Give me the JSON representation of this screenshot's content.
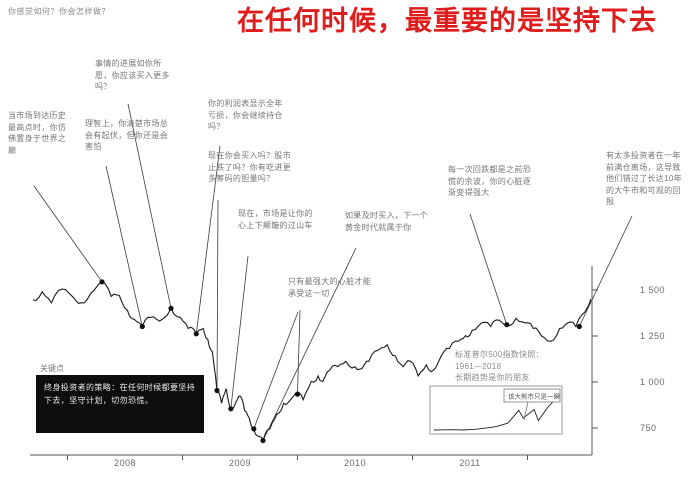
{
  "header": {
    "question": "你感觉如何？你会怎样做？",
    "title": "在任何时候，最重要的是坚持下去",
    "title_color": "#df1d1d"
  },
  "annotations": [
    "当市场到达历史最高点时，你仿佛置身于世界之巅",
    "事情的进展如你所愿，你应该买入更多吗？",
    "理智上，你清楚市场总会有起伏，但你还是会害怕",
    "你的利润表显示全年亏损，你会继续持仓吗？",
    "现在你会买入吗？股市止跌了吗？你有吃进更多筹码的胆量吗？",
    "现在，市场是让你的心上下颠簸的过山车",
    "只有最强大的心脏才能承受这一切",
    "如果及时买入，下一个黄金时代就属于你",
    "每一次回跌都是之前恐慌的余波，你的心脏逐渐变得强大",
    "有太多投资者在一年前满仓离场，这导致他们错过了长达10年的大牛市和可观的回报"
  ],
  "key_point": {
    "label": "关键点",
    "body": "终身投资者的策略：在任何时候都要坚持下去，坚守计划，切勿恐慌。"
  },
  "inset": {
    "caption": "标准普尔500指数快照：\n1961—2018\n长期趋势是你的朋友",
    "note": "该大熊市只是一瞬"
  },
  "chart_data": {
    "type": "line",
    "title": "在任何时候，最重要的是坚持下去",
    "xlabel": "",
    "ylabel": "",
    "grid": false,
    "x_ticks": [
      "2008",
      "2009",
      "2010",
      "2011"
    ],
    "y_ticks": [
      "1 500",
      "1 250",
      "1 000",
      "750"
    ],
    "y_tick_values": [
      1500,
      1250,
      1000,
      750
    ],
    "x_range": [
      2007.2,
      2012.05
    ],
    "ylim": [
      620,
      1650
    ],
    "series": [
      {
        "name": "标准普尔500指数",
        "points": [
          [
            2007.2,
            1445
          ],
          [
            2007.28,
            1490
          ],
          [
            2007.36,
            1430
          ],
          [
            2007.45,
            1505
          ],
          [
            2007.55,
            1460
          ],
          [
            2007.62,
            1430
          ],
          [
            2007.7,
            1480
          ],
          [
            2007.8,
            1545
          ],
          [
            2007.88,
            1465
          ],
          [
            2007.95,
            1470
          ],
          [
            2008.02,
            1390
          ],
          [
            2008.08,
            1340
          ],
          [
            2008.15,
            1300
          ],
          [
            2008.22,
            1350
          ],
          [
            2008.3,
            1330
          ],
          [
            2008.4,
            1400
          ],
          [
            2008.48,
            1350
          ],
          [
            2008.55,
            1290
          ],
          [
            2008.62,
            1260
          ],
          [
            2008.68,
            1290
          ],
          [
            2008.72,
            1230
          ],
          [
            2008.76,
            1160
          ],
          [
            2008.8,
            950
          ],
          [
            2008.84,
            880
          ],
          [
            2008.88,
            960
          ],
          [
            2008.92,
            850
          ],
          [
            2008.96,
            880
          ],
          [
            2009.0,
            920
          ],
          [
            2009.04,
            840
          ],
          [
            2009.08,
            800
          ],
          [
            2009.12,
            740
          ],
          [
            2009.16,
            700
          ],
          [
            2009.2,
            676
          ],
          [
            2009.26,
            740
          ],
          [
            2009.32,
            820
          ],
          [
            2009.38,
            880
          ],
          [
            2009.44,
            900
          ],
          [
            2009.5,
            930
          ],
          [
            2009.55,
            900
          ],
          [
            2009.62,
            1000
          ],
          [
            2009.68,
            1030
          ],
          [
            2009.72,
            1000
          ],
          [
            2009.78,
            1060
          ],
          [
            2009.85,
            1080
          ],
          [
            2009.92,
            1110
          ],
          [
            2010.0,
            1080
          ],
          [
            2010.06,
            1070
          ],
          [
            2010.12,
            1110
          ],
          [
            2010.2,
            1170
          ],
          [
            2010.28,
            1200
          ],
          [
            2010.35,
            1140
          ],
          [
            2010.42,
            1080
          ],
          [
            2010.48,
            1110
          ],
          [
            2010.55,
            1030
          ],
          [
            2010.62,
            1090
          ],
          [
            2010.68,
            1060
          ],
          [
            2010.75,
            1140
          ],
          [
            2010.82,
            1180
          ],
          [
            2010.9,
            1220
          ],
          [
            2010.96,
            1250
          ],
          [
            2011.02,
            1280
          ],
          [
            2011.1,
            1320
          ],
          [
            2011.18,
            1300
          ],
          [
            2011.25,
            1335
          ],
          [
            2011.32,
            1310
          ],
          [
            2011.4,
            1345
          ],
          [
            2011.48,
            1320
          ],
          [
            2011.55,
            1290
          ],
          [
            2011.62,
            1250
          ],
          [
            2011.7,
            1220
          ],
          [
            2011.78,
            1290
          ],
          [
            2011.85,
            1320
          ],
          [
            2011.92,
            1300
          ],
          [
            2012.0,
            1380
          ],
          [
            2012.05,
            1450
          ]
        ]
      }
    ],
    "annotation_points": [
      [
        2007.8,
        1545
      ],
      [
        2008.15,
        1300
      ],
      [
        2008.4,
        1400
      ],
      [
        2008.62,
        1260
      ],
      [
        2008.8,
        950
      ],
      [
        2008.92,
        850
      ],
      [
        2009.12,
        740
      ],
      [
        2009.2,
        676
      ],
      [
        2009.5,
        930
      ],
      [
        2011.32,
        1310
      ],
      [
        2011.95,
        1300
      ]
    ],
    "inset_chart": {
      "type": "line",
      "title": "标准普尔500指数快照：1961—2018",
      "x": [
        1961,
        1966,
        1970,
        1974,
        1980,
        1987,
        1990,
        1995,
        2000,
        2002,
        2007,
        2009,
        2013,
        2016,
        2018
      ],
      "values": [
        70,
        85,
        90,
        70,
        120,
        250,
        330,
        550,
        1450,
        900,
        1500,
        735,
        1600,
        2100,
        2700
      ]
    }
  }
}
